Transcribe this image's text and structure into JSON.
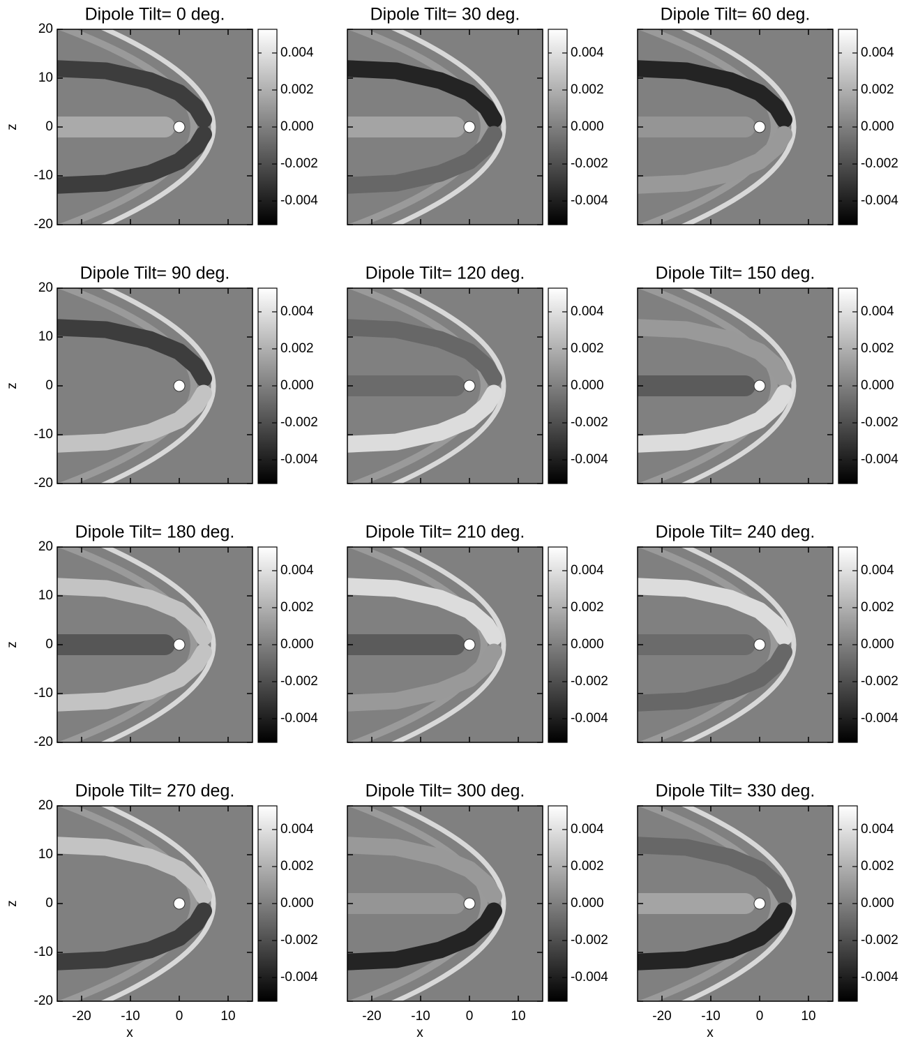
{
  "chart_data": [
    {
      "type": "heatmap",
      "title": "Dipole Tilt= 0 deg.",
      "xlim": [
        -25,
        15
      ],
      "ylim": [
        -20,
        20
      ],
      "xticks": [
        -20,
        -10,
        0,
        10
      ],
      "yticks": [
        -20,
        -10,
        0,
        10,
        20
      ],
      "ylabel": "z",
      "show_xticklabels": false,
      "show_yticklabels": true,
      "colorbar": {
        "lim": [
          -0.00528,
          0.00528
        ],
        "ticks": [
          -0.004,
          -0.002,
          {
            "value": 0,
            "label": "0.000"
          },
          0.002,
          0.004
        ],
        "colormap": "gray"
      }
    },
    {
      "type": "heatmap",
      "title": "Dipole Tilt= 30 deg.",
      "xlim": [
        -25,
        15
      ],
      "ylim": [
        -20,
        20
      ],
      "xticks": [
        -20,
        -10,
        0,
        10
      ],
      "yticks": [
        -20,
        -10,
        0,
        10,
        20
      ],
      "show_xticklabels": false,
      "show_yticklabels": false,
      "colorbar": {
        "lim": [
          -0.00528,
          0.00528
        ],
        "ticks": [
          -0.004,
          -0.002,
          {
            "value": 0,
            "label": "0.000"
          },
          0.002,
          0.004
        ],
        "colormap": "gray"
      }
    },
    {
      "type": "heatmap",
      "title": "Dipole Tilt= 60 deg.",
      "xlim": [
        -25,
        15
      ],
      "ylim": [
        -20,
        20
      ],
      "xticks": [
        -20,
        -10,
        0,
        10
      ],
      "yticks": [
        -20,
        -10,
        0,
        10,
        20
      ],
      "show_xticklabels": false,
      "show_yticklabels": false,
      "colorbar": {
        "lim": [
          -0.00528,
          0.00528
        ],
        "ticks": [
          -0.004,
          -0.002,
          {
            "value": 0,
            "label": "0.000"
          },
          0.002,
          0.004
        ],
        "colormap": "gray"
      }
    },
    {
      "type": "heatmap",
      "title": "Dipole Tilt= 90 deg.",
      "xlim": [
        -25,
        15
      ],
      "ylim": [
        -20,
        20
      ],
      "xticks": [
        -20,
        -10,
        0,
        10
      ],
      "yticks": [
        -20,
        -10,
        0,
        10,
        20
      ],
      "ylabel": "z",
      "show_xticklabels": false,
      "show_yticklabels": true,
      "colorbar": {
        "lim": [
          -0.00528,
          0.00528
        ],
        "ticks": [
          -0.004,
          -0.002,
          {
            "value": 0,
            "label": "0.000"
          },
          0.002,
          0.004
        ],
        "colormap": "gray"
      }
    },
    {
      "type": "heatmap",
      "title": "Dipole Tilt= 120 deg.",
      "xlim": [
        -25,
        15
      ],
      "ylim": [
        -20,
        20
      ],
      "xticks": [
        -20,
        -10,
        0,
        10
      ],
      "yticks": [
        -20,
        -10,
        0,
        10,
        20
      ],
      "show_xticklabels": false,
      "show_yticklabels": false,
      "colorbar": {
        "lim": [
          -0.00528,
          0.00528
        ],
        "ticks": [
          -0.004,
          -0.002,
          {
            "value": 0,
            "label": "0.000"
          },
          0.002,
          0.004
        ],
        "colormap": "gray"
      }
    },
    {
      "type": "heatmap",
      "title": "Dipole Tilt= 150 deg.",
      "xlim": [
        -25,
        15
      ],
      "ylim": [
        -20,
        20
      ],
      "xticks": [
        -20,
        -10,
        0,
        10
      ],
      "yticks": [
        -20,
        -10,
        0,
        10,
        20
      ],
      "show_xticklabels": false,
      "show_yticklabels": false,
      "colorbar": {
        "lim": [
          -0.00528,
          0.00528
        ],
        "ticks": [
          -0.004,
          -0.002,
          {
            "value": 0,
            "label": "0.000"
          },
          0.002,
          0.004
        ],
        "colormap": "gray"
      }
    },
    {
      "type": "heatmap",
      "title": "Dipole Tilt= 180 deg.",
      "xlim": [
        -25,
        15
      ],
      "ylim": [
        -20,
        20
      ],
      "xticks": [
        -20,
        -10,
        0,
        10
      ],
      "yticks": [
        -20,
        -10,
        0,
        10,
        20
      ],
      "ylabel": "z",
      "show_xticklabels": false,
      "show_yticklabels": true,
      "colorbar": {
        "lim": [
          -0.00528,
          0.00528
        ],
        "ticks": [
          -0.004,
          -0.002,
          {
            "value": 0,
            "label": "0.000"
          },
          0.002,
          0.004
        ],
        "colormap": "gray"
      }
    },
    {
      "type": "heatmap",
      "title": "Dipole Tilt= 210 deg.",
      "xlim": [
        -25,
        15
      ],
      "ylim": [
        -20,
        20
      ],
      "xticks": [
        -20,
        -10,
        0,
        10
      ],
      "yticks": [
        -20,
        -10,
        0,
        10,
        20
      ],
      "show_xticklabels": false,
      "show_yticklabels": false,
      "colorbar": {
        "lim": [
          -0.00528,
          0.00528
        ],
        "ticks": [
          -0.004,
          -0.002,
          {
            "value": 0,
            "label": "0.000"
          },
          0.002,
          0.004
        ],
        "colormap": "gray"
      }
    },
    {
      "type": "heatmap",
      "title": "Dipole Tilt= 240 deg.",
      "xlim": [
        -25,
        15
      ],
      "ylim": [
        -20,
        20
      ],
      "xticks": [
        -20,
        -10,
        0,
        10
      ],
      "yticks": [
        -20,
        -10,
        0,
        10,
        20
      ],
      "show_xticklabels": false,
      "show_yticklabels": false,
      "colorbar": {
        "lim": [
          -0.00528,
          0.00528
        ],
        "ticks": [
          -0.004,
          -0.002,
          {
            "value": 0,
            "label": "0.000"
          },
          0.002,
          0.004
        ],
        "colormap": "gray"
      }
    },
    {
      "type": "heatmap",
      "title": "Dipole Tilt= 270 deg.",
      "xlim": [
        -25,
        15
      ],
      "ylim": [
        -20,
        20
      ],
      "xticks": [
        -20,
        -10,
        0,
        10
      ],
      "yticks": [
        -20,
        -10,
        0,
        10,
        20
      ],
      "xlabel": "x",
      "ylabel": "z",
      "show_xticklabels": true,
      "show_yticklabels": true,
      "colorbar": {
        "lim": [
          -0.00528,
          0.00528
        ],
        "ticks": [
          -0.004,
          -0.002,
          {
            "value": 0,
            "label": "0.000"
          },
          0.002,
          0.004
        ],
        "colormap": "gray"
      }
    },
    {
      "type": "heatmap",
      "title": "Dipole Tilt= 300 deg.",
      "xlim": [
        -25,
        15
      ],
      "ylim": [
        -20,
        20
      ],
      "xticks": [
        -20,
        -10,
        0,
        10
      ],
      "yticks": [
        -20,
        -10,
        0,
        10,
        20
      ],
      "xlabel": "x",
      "show_xticklabels": true,
      "show_yticklabels": false,
      "colorbar": {
        "lim": [
          -0.00528,
          0.00528
        ],
        "ticks": [
          -0.004,
          -0.002,
          {
            "value": 0,
            "label": "0.000"
          },
          0.002,
          0.004
        ],
        "colormap": "gray"
      }
    },
    {
      "type": "heatmap",
      "title": "Dipole Tilt= 330 deg.",
      "xlim": [
        -25,
        15
      ],
      "ylim": [
        -20,
        20
      ],
      "xticks": [
        -20,
        -10,
        0,
        10
      ],
      "yticks": [
        -20,
        -10,
        0,
        10,
        20
      ],
      "xlabel": "x",
      "show_xticklabels": true,
      "show_yticklabels": false,
      "colorbar": {
        "lim": [
          -0.00528,
          0.00528
        ],
        "ticks": [
          -0.004,
          -0.002,
          {
            "value": 0,
            "label": "0.000"
          },
          0.002,
          0.004
        ],
        "colormap": "gray"
      }
    }
  ]
}
